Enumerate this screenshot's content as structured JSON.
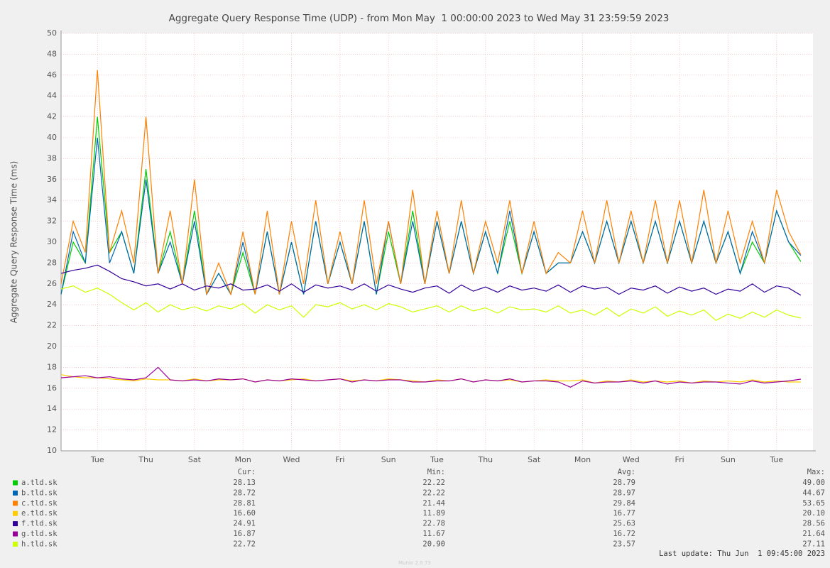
{
  "chart_data": {
    "type": "line",
    "title": "Aggregate Query Response Time (UDP) - from Mon May  1 00:00:00 2023 to Wed May 31 23:59:59 2023",
    "y_label": "Aggregate Query Response Time (ms)",
    "xlim": [
      0,
      31
    ],
    "xticks": [
      {
        "value": 1.5,
        "label": "Tue"
      },
      {
        "value": 3.5,
        "label": "Thu"
      },
      {
        "value": 5.5,
        "label": "Sat"
      },
      {
        "value": 7.5,
        "label": "Mon"
      },
      {
        "value": 9.5,
        "label": "Wed"
      },
      {
        "value": 11.5,
        "label": "Fri"
      },
      {
        "value": 13.5,
        "label": "Sun"
      },
      {
        "value": 15.5,
        "label": "Tue"
      },
      {
        "value": 17.5,
        "label": "Thu"
      },
      {
        "value": 19.5,
        "label": "Sat"
      },
      {
        "value": 21.5,
        "label": "Mon"
      },
      {
        "value": 23.5,
        "label": "Wed"
      },
      {
        "value": 25.5,
        "label": "Fri"
      },
      {
        "value": 27.5,
        "label": "Sun"
      },
      {
        "value": 29.5,
        "label": "Tue"
      }
    ],
    "ylim": [
      10,
      50
    ],
    "yticks": [
      10,
      12,
      14,
      16,
      18,
      20,
      22,
      24,
      26,
      28,
      30,
      32,
      34,
      36,
      38,
      40,
      42,
      44,
      46,
      48,
      50
    ],
    "grid": true,
    "x": [
      0,
      0.5,
      1,
      1.5,
      2,
      2.5,
      3,
      3.5,
      4,
      4.5,
      5,
      5.5,
      6,
      6.5,
      7,
      7.5,
      8,
      8.5,
      9,
      9.5,
      10,
      10.5,
      11,
      11.5,
      12,
      12.5,
      13,
      13.5,
      14,
      14.5,
      15,
      15.5,
      16,
      16.5,
      17,
      17.5,
      18,
      18.5,
      19,
      19.5,
      20,
      20.5,
      21,
      21.5,
      22,
      22.5,
      23,
      23.5,
      24,
      24.5,
      25,
      25.5,
      26,
      26.5,
      27,
      27.5,
      28,
      28.5,
      29,
      29.5,
      30,
      30.5
    ],
    "stat_headers": [
      "Cur:",
      "Min:",
      "Avg:",
      "Max:"
    ],
    "series": [
      {
        "name": "a.tld.sk",
        "color": "#00cc00",
        "stats": [
          28.13,
          22.22,
          28.79,
          {
            "value": 49,
            "label": "49.00"
          }
        ],
        "values": [
          25,
          30,
          28,
          42,
          29,
          31,
          27,
          37,
          27,
          31,
          26,
          33,
          25,
          27,
          25,
          29,
          25,
          31,
          25,
          30,
          25,
          32,
          26,
          30,
          26,
          32,
          25,
          31,
          26,
          33,
          26,
          32,
          27,
          32,
          27,
          31,
          27,
          32,
          27,
          31,
          27,
          28,
          28,
          31,
          28,
          32,
          28,
          32,
          28,
          32,
          28,
          32,
          28,
          32,
          28,
          31,
          27,
          30,
          28,
          33,
          30,
          28.13
        ]
      },
      {
        "name": "b.tld.sk",
        "color": "#0066b3",
        "stats": [
          28.72,
          22.22,
          28.97,
          44.67
        ],
        "values": [
          25,
          31,
          28,
          40,
          28,
          31,
          27,
          36,
          27,
          30,
          26,
          32,
          25,
          27,
          25,
          30,
          25,
          31,
          25,
          30,
          25,
          32,
          26,
          30,
          26,
          32,
          25,
          32,
          26,
          32,
          26,
          32,
          27,
          32,
          27,
          31,
          27,
          33,
          27,
          31,
          27,
          28,
          28,
          31,
          28,
          32,
          28,
          32,
          28,
          32,
          28,
          32,
          28,
          32,
          28,
          31,
          27,
          31,
          28,
          33,
          30,
          28.72
        ]
      },
      {
        "name": "c.tld.sk",
        "color": "#ff8000",
        "stats": [
          28.81,
          21.44,
          29.84,
          53.65
        ],
        "values": [
          26,
          32,
          29,
          46.5,
          29,
          33,
          28,
          42,
          27,
          33,
          26,
          36,
          25,
          28,
          25,
          31,
          25,
          33,
          25,
          32,
          26,
          34,
          26,
          31,
          26,
          34,
          26,
          32,
          26,
          35,
          26,
          33,
          27,
          34,
          27,
          32,
          28,
          34,
          27,
          32,
          27,
          29,
          28,
          33,
          28,
          34,
          28,
          33,
          28,
          34,
          28,
          34,
          28,
          35,
          28,
          33,
          28,
          32,
          28,
          35,
          31,
          28.81
        ]
      },
      {
        "name": "e.tld.sk",
        "color": "#ffcc00",
        "stats": [
          {
            "value": 16.6,
            "label": "16.60"
          },
          11.89,
          16.77,
          {
            "value": 20.1,
            "label": "20.10"
          }
        ],
        "values": [
          17.3,
          17.1,
          17.0,
          17.0,
          16.9,
          16.8,
          16.7,
          16.9,
          16.8,
          16.8,
          16.7,
          16.9,
          16.7,
          16.8,
          16.8,
          16.9,
          16.6,
          16.8,
          16.7,
          16.8,
          16.9,
          16.7,
          16.8,
          16.9,
          16.7,
          16.8,
          16.7,
          16.9,
          16.8,
          16.7,
          16.6,
          16.8,
          16.7,
          16.9,
          16.6,
          16.8,
          16.7,
          16.8,
          16.6,
          16.7,
          16.8,
          16.7,
          16.7,
          16.8,
          16.5,
          16.7,
          16.6,
          16.8,
          16.6,
          16.7,
          16.6,
          16.7,
          16.5,
          16.7,
          16.6,
          16.7,
          16.6,
          16.8,
          16.6,
          16.7,
          16.6,
          16.6
        ]
      },
      {
        "name": "f.tld.sk",
        "color": "#330099",
        "stats": [
          24.91,
          22.78,
          25.63,
          28.56
        ],
        "values": [
          27.0,
          27.3,
          27.5,
          27.8,
          27.2,
          26.5,
          26.2,
          25.8,
          26.0,
          25.5,
          26.0,
          25.4,
          25.8,
          25.6,
          26.0,
          25.4,
          25.5,
          25.9,
          25.3,
          26.0,
          25.2,
          25.9,
          25.6,
          25.8,
          25.4,
          26.0,
          25.3,
          25.9,
          25.5,
          25.2,
          25.6,
          25.8,
          25.1,
          25.9,
          25.3,
          25.7,
          25.2,
          25.8,
          25.4,
          25.6,
          25.3,
          25.9,
          25.2,
          25.8,
          25.5,
          25.7,
          25.0,
          25.6,
          25.4,
          25.8,
          25.1,
          25.7,
          25.3,
          25.6,
          25.0,
          25.5,
          25.3,
          26.0,
          25.2,
          25.8,
          25.6,
          24.91
        ]
      },
      {
        "name": "g.tld.sk",
        "color": "#990099",
        "stats": [
          16.87,
          11.67,
          16.72,
          21.64
        ],
        "values": [
          17.0,
          17.1,
          17.2,
          17.0,
          17.1,
          16.9,
          16.8,
          17.0,
          18.0,
          16.8,
          16.7,
          16.8,
          16.7,
          16.9,
          16.8,
          16.9,
          16.6,
          16.8,
          16.7,
          16.9,
          16.8,
          16.7,
          16.8,
          16.9,
          16.6,
          16.8,
          16.7,
          16.8,
          16.8,
          16.6,
          16.6,
          16.7,
          16.7,
          16.9,
          16.6,
          16.8,
          16.7,
          16.9,
          16.6,
          16.7,
          16.7,
          16.6,
          16.1,
          16.7,
          16.5,
          16.6,
          16.6,
          16.7,
          16.5,
          16.7,
          16.4,
          16.6,
          16.5,
          16.6,
          16.6,
          16.5,
          16.4,
          16.7,
          16.5,
          16.6,
          16.7,
          16.87
        ]
      },
      {
        "name": "h.tld.sk",
        "color": "#ccff00",
        "stats": [
          22.72,
          {
            "value": 20.9,
            "label": "20.90"
          },
          23.57,
          27.11
        ],
        "values": [
          25.5,
          25.8,
          25.2,
          25.6,
          25.0,
          24.2,
          23.5,
          24.2,
          23.3,
          24.0,
          23.5,
          23.8,
          23.4,
          23.9,
          23.6,
          24.1,
          23.2,
          24.0,
          23.5,
          23.9,
          22.8,
          24.0,
          23.8,
          24.2,
          23.6,
          24.0,
          23.5,
          24.1,
          23.8,
          23.3,
          23.6,
          23.9,
          23.3,
          23.9,
          23.4,
          23.7,
          23.2,
          23.8,
          23.5,
          23.6,
          23.3,
          23.9,
          23.2,
          23.5,
          23.0,
          23.7,
          22.9,
          23.6,
          23.2,
          23.8,
          22.9,
          23.4,
          23.0,
          23.5,
          22.5,
          23.1,
          22.7,
          23.3,
          22.8,
          23.5,
          23.0,
          22.72
        ]
      }
    ],
    "last_update": "Last update: Thu Jun  1 09:45:00 2023",
    "footer": "Munin 2.0.73"
  }
}
